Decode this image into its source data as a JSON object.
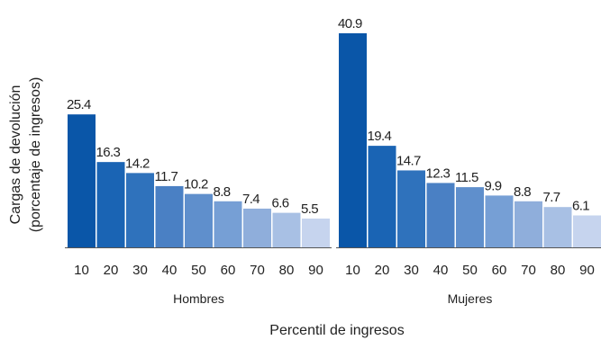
{
  "chart_data": {
    "type": "bar",
    "xlabel": "Percentil de ingresos",
    "ylabel_line1": "Cargas de devolución",
    "ylabel_line2": "(porcentaje de ingresos)",
    "groups": [
      {
        "name": "Hombres",
        "categories": [
          "10",
          "20",
          "30",
          "40",
          "50",
          "60",
          "70",
          "80",
          "90"
        ],
        "values": [
          25.4,
          16.3,
          14.2,
          11.7,
          10.2,
          8.8,
          7.4,
          6.6,
          5.5
        ]
      },
      {
        "name": "Mujeres",
        "categories": [
          "10",
          "20",
          "30",
          "40",
          "50",
          "60",
          "70",
          "80",
          "90"
        ],
        "values": [
          40.9,
          19.4,
          14.7,
          12.3,
          11.5,
          9.9,
          8.8,
          7.7,
          6.1
        ]
      }
    ],
    "ylim": [
      0,
      40.9
    ],
    "grid": false,
    "legend": "none",
    "colors": [
      "#0a56a8",
      "#1a64b4",
      "#2f72bc",
      "#4a80c4",
      "#5f8fcc",
      "#769fd5",
      "#8faedb",
      "#a8c0e4",
      "#c6d4ee"
    ]
  }
}
